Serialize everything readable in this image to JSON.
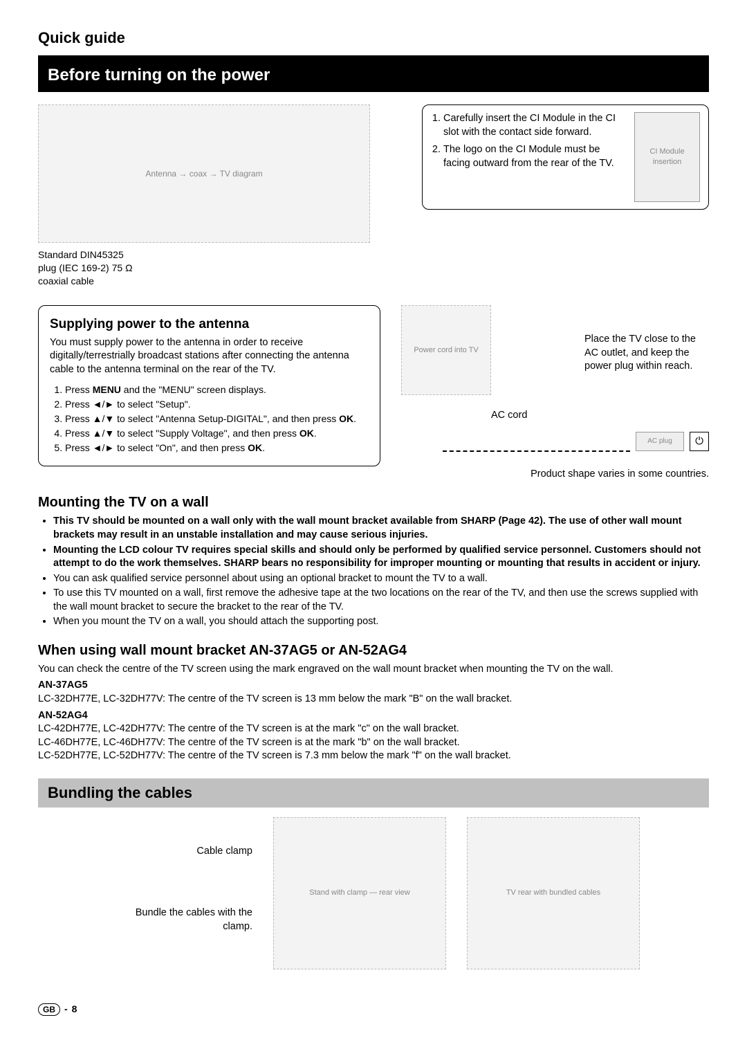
{
  "page": {
    "title": "Quick guide",
    "footer_region": "GB",
    "footer_sep": "-",
    "footer_page": "8"
  },
  "sections": {
    "before_power": "Before turning on the power",
    "bundling": "Bundling the cables"
  },
  "antenna": {
    "diagram_alt": "Antenna → coax → TV diagram",
    "std_label": "Standard DIN45325 plug (IEC 169-2) 75 Ω coaxial cable"
  },
  "ci_module": {
    "step1": "Carefully insert the CI Module in the CI slot with the contact side forward.",
    "step2": "The logo on the CI Module must be facing outward from the rear of the TV.",
    "img_alt": "CI Module insertion"
  },
  "antenna_power": {
    "heading": "Supplying power to the antenna",
    "intro": "You must supply power to the antenna in order to receive digitally/terrestrially broadcast stations after connecting the antenna cable to the antenna terminal on the rear of the TV.",
    "steps": {
      "s1_a": "Press ",
      "s1_menu": "MENU",
      "s1_b": " and the \"MENU\" screen displays.",
      "s2": "Press ◄/► to select \"Setup\".",
      "s3_a": "Press ▲/▼ to select \"Antenna Setup-DIGITAL\", and then press ",
      "s3_ok": "OK",
      "s3_b": ".",
      "s4_a": "Press ▲/▼ to select \"Supply Voltage\", and then press ",
      "s4_ok": "OK",
      "s4_b": ".",
      "s5_a": "Press ◄/► to select \"On\", and then press ",
      "s5_ok": "OK",
      "s5_b": "."
    }
  },
  "ac": {
    "img_alt": "Power cord into TV",
    "note": "Place the TV close to the AC outlet, and keep the power plug within reach.",
    "cord_label": "AC cord",
    "plug_alt": "AC plug",
    "outlet_glyph": "⏻",
    "shape_note": "Product shape varies in some countries."
  },
  "mounting": {
    "heading": "Mounting the TV on a wall",
    "b1": "This TV should be mounted on a wall only with the wall mount bracket available from SHARP (Page 42). The use of other wall mount brackets may result in an unstable installation and may cause serious injuries.",
    "b2": "Mounting the LCD colour TV requires special skills and should only be performed by qualified service personnel. Customers should not attempt to do the work themselves. SHARP bears no responsibility for improper mounting or mounting that results in accident or injury.",
    "b3": "You can ask qualified service personnel about using an optional bracket to mount the TV to a wall.",
    "b4": "To use this TV mounted on a wall, first remove the adhesive tape at the two locations on the rear of the TV, and then use the screws supplied with the wall mount bracket to secure the bracket to the rear of the TV.",
    "b5": "When you mount the TV on a wall, you should attach the supporting post."
  },
  "bracket": {
    "heading": "When using wall mount bracket AN-37AG5 or AN-52AG4",
    "intro": "You can check the centre of the TV screen using the mark engraved on the wall mount bracket when mounting the TV on the wall.",
    "an37_label": "AN-37AG5",
    "an37_line": "LC-32DH77E, LC-32DH77V: The centre of the TV screen is 13 mm below the mark \"B\" on the wall bracket.",
    "an52_label": "AN-52AG4",
    "an52_l1": "LC-42DH77E, LC-42DH77V: The centre of the TV screen is at the mark \"c\" on the wall bracket.",
    "an52_l2": "LC-46DH77E, LC-46DH77V: The centre of the TV screen is at the mark \"b\" on the wall bracket.",
    "an52_l3": "LC-52DH77E, LC-52DH77V: The centre of the TV screen is 7.3 mm below the mark \"f\" on the wall bracket."
  },
  "bundling": {
    "label1": "Cable clamp",
    "label2": "Bundle the cables with the clamp.",
    "img1_alt": "Stand with clamp — rear view",
    "img2_alt": "TV rear with bundled cables"
  },
  "colors": {
    "black": "#000000",
    "grey_bar": "#c0c0c0",
    "placeholder_bg": "#f3f3f3"
  }
}
